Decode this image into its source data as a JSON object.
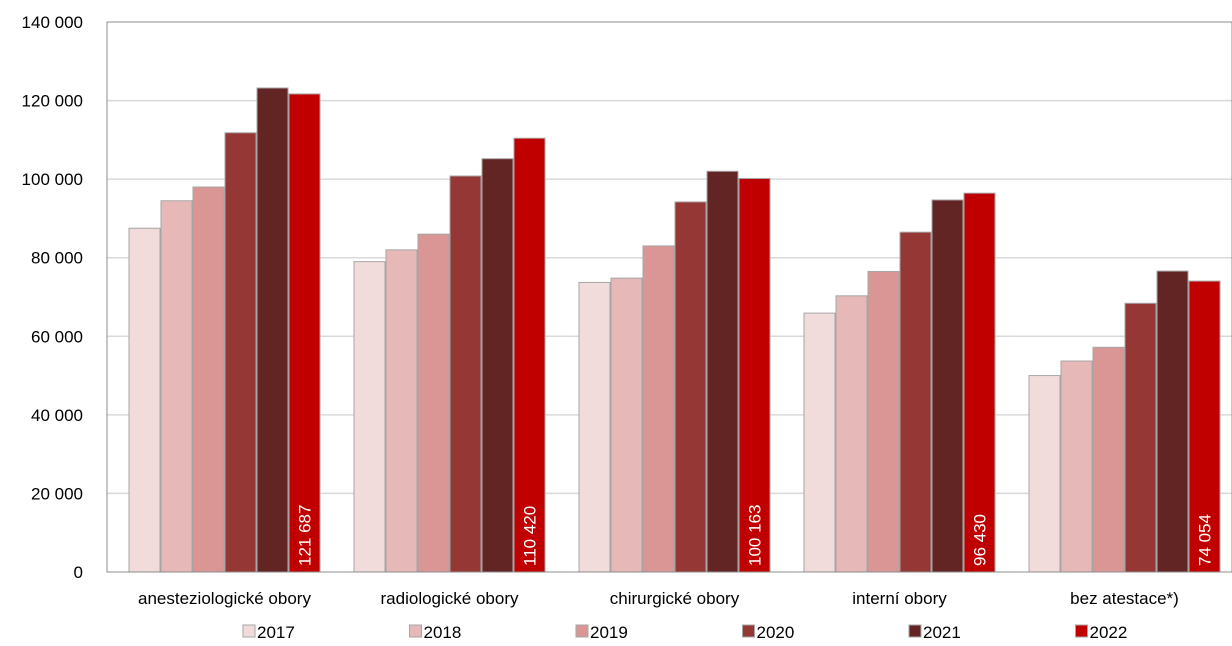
{
  "chart_data": {
    "type": "bar",
    "title": "",
    "xlabel": "",
    "ylabel": "",
    "ylim": [
      0,
      140000
    ],
    "yticks": [
      0,
      20000,
      40000,
      60000,
      80000,
      100000,
      120000,
      140000
    ],
    "ytick_labels": [
      "0",
      "20 000",
      "40 000",
      "60 000",
      "80 000",
      "100 000",
      "120 000",
      "140 000"
    ],
    "grid": true,
    "legend_position": "bottom",
    "categories": [
      "anesteziologické obory",
      "radiologické obory",
      "chirurgické obory",
      "interní obory",
      "bez atestace*)"
    ],
    "series": [
      {
        "name": "2017",
        "color": "#f2dcdb",
        "values": [
          87500,
          79000,
          73700,
          65900,
          50000
        ]
      },
      {
        "name": "2018",
        "color": "#e6b9b8",
        "values": [
          94500,
          82000,
          74800,
          70300,
          53700
        ]
      },
      {
        "name": "2019",
        "color": "#d99694",
        "values": [
          98000,
          86000,
          83000,
          76500,
          57200
        ]
      },
      {
        "name": "2020",
        "color": "#953735",
        "values": [
          111800,
          100800,
          94200,
          86500,
          68400
        ]
      },
      {
        "name": "2021",
        "color": "#632523",
        "values": [
          123200,
          105200,
          102000,
          94700,
          76600
        ]
      },
      {
        "name": "2022",
        "color": "#c00000",
        "values": [
          121687,
          110420,
          100163,
          96430,
          74054
        ]
      }
    ],
    "data_labels": {
      "series": "2022",
      "labels": [
        "121 687",
        "110 420",
        "100 163",
        "96 430",
        "74 054"
      ]
    }
  }
}
